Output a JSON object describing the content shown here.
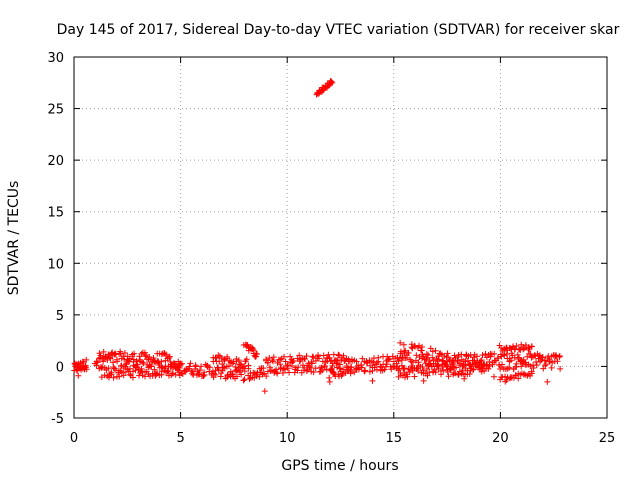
{
  "chart_data": {
    "type": "scatter",
    "title": "Day 145 of 2017, Sidereal Day-to-day VTEC variation (SDTVAR) for receiver skar",
    "xlabel": "GPS time / hours",
    "ylabel": "SDTVAR / TECUs",
    "xlim": [
      0,
      25
    ],
    "ylim": [
      -5,
      30
    ],
    "x_ticks": [
      0,
      5,
      10,
      15,
      20,
      25
    ],
    "y_ticks": [
      -5,
      0,
      5,
      10,
      15,
      20,
      25,
      30
    ],
    "grid": true,
    "marker": "+",
    "color": "#ff0000",
    "series": [
      {
        "name": "SDTVAR",
        "segments": [
          {
            "x0": 0.0,
            "x1": 0.6,
            "y0": -0.2,
            "y1": 0.2,
            "spread": 0.5,
            "n": 30
          },
          {
            "x0": 1.0,
            "x1": 4.5,
            "y0": 0.8,
            "y1": 0.6,
            "spread": 0.7,
            "n": 90
          },
          {
            "x0": 1.2,
            "x1": 5.0,
            "y0": -0.6,
            "y1": -0.3,
            "spread": 0.6,
            "n": 90
          },
          {
            "x0": 4.5,
            "x1": 8.0,
            "y0": 0.0,
            "y1": -0.8,
            "spread": 0.6,
            "n": 90
          },
          {
            "x0": 6.5,
            "x1": 8.2,
            "y0": 0.7,
            "y1": 0.2,
            "spread": 0.5,
            "n": 35
          },
          {
            "x0": 8.0,
            "x1": 8.6,
            "y0": 2.3,
            "y1": 1.0,
            "spread": 0.3,
            "n": 20
          },
          {
            "x0": 8.2,
            "x1": 9.0,
            "y0": -0.9,
            "y1": -0.5,
            "spread": 0.5,
            "n": 20
          },
          {
            "x0": 9.0,
            "x1": 12.5,
            "y0": 0.2,
            "y1": 0.3,
            "spread": 0.9,
            "n": 110
          },
          {
            "x0": 11.4,
            "x1": 12.1,
            "y0": 26.4,
            "y1": 27.6,
            "spread": 0.2,
            "n": 35
          },
          {
            "x0": 12.0,
            "x1": 13.0,
            "y0": -0.7,
            "y1": -0.3,
            "spread": 0.5,
            "n": 25
          },
          {
            "x0": 12.4,
            "x1": 13.0,
            "y0": 1.0,
            "y1": 0.5,
            "spread": 0.3,
            "n": 12
          },
          {
            "x0": 13.0,
            "x1": 15.5,
            "y0": 0.0,
            "y1": 0.5,
            "spread": 0.7,
            "n": 70
          },
          {
            "x0": 15.3,
            "x1": 17.0,
            "y0": 1.5,
            "y1": 0.8,
            "spread": 0.9,
            "n": 50
          },
          {
            "x0": 15.2,
            "x1": 17.5,
            "y0": -0.5,
            "y1": -0.2,
            "spread": 0.6,
            "n": 50
          },
          {
            "x0": 17.0,
            "x1": 20.0,
            "y0": 0.8,
            "y1": 0.6,
            "spread": 0.6,
            "n": 80
          },
          {
            "x0": 17.5,
            "x1": 19.5,
            "y0": -0.5,
            "y1": 0.0,
            "spread": 0.5,
            "n": 50
          },
          {
            "x0": 20.0,
            "x1": 22.8,
            "y0": 0.5,
            "y1": 0.5,
            "spread": 0.8,
            "n": 80
          },
          {
            "x0": 20.0,
            "x1": 21.5,
            "y0": 1.8,
            "y1": 1.8,
            "spread": 0.3,
            "n": 30
          },
          {
            "x0": 20.0,
            "x1": 21.5,
            "y0": -1.3,
            "y1": -0.7,
            "spread": 0.3,
            "n": 25
          }
        ],
        "points": [
          {
            "x": 8.95,
            "y": -2.4
          },
          {
            "x": 12.0,
            "y": -1.5
          },
          {
            "x": 14.0,
            "y": -1.4
          },
          {
            "x": 16.4,
            "y": -1.4
          },
          {
            "x": 18.3,
            "y": -1.2
          },
          {
            "x": 22.2,
            "y": -1.5
          },
          {
            "x": 19.7,
            "y": -1.0
          },
          {
            "x": 0.2,
            "y": -0.9
          }
        ]
      }
    ]
  }
}
